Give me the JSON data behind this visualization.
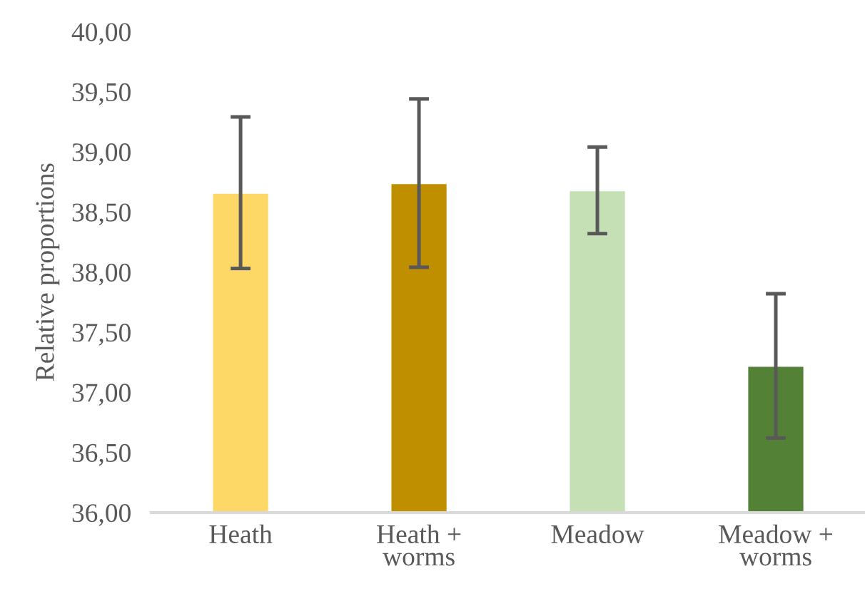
{
  "chart_data": {
    "type": "bar",
    "ylabel": "Relative proportions",
    "categories": [
      "Heath",
      "Heath +\nworms",
      "Meadow",
      "Meadow +\nworms"
    ],
    "values": [
      38.66,
      38.74,
      38.68,
      37.22
    ],
    "colors": [
      "#fdd867",
      "#bf8f00",
      "#c5e0b4",
      "#538135"
    ],
    "errors": [
      0.63,
      0.7,
      0.36,
      0.6
    ],
    "ylim": [
      36,
      40
    ],
    "yticks": [
      {
        "value": 36,
        "label": "36,00"
      },
      {
        "value": 36.5,
        "label": "36,50"
      },
      {
        "value": 37,
        "label": "37,00"
      },
      {
        "value": 37.5,
        "label": "37,50"
      },
      {
        "value": 38,
        "label": "38,00"
      },
      {
        "value": 38.5,
        "label": "38,50"
      },
      {
        "value": 39,
        "label": "39,00"
      },
      {
        "value": 39.5,
        "label": "39,50"
      },
      {
        "value": 40,
        "label": "40,00"
      }
    ],
    "grid": false,
    "legend": false
  }
}
